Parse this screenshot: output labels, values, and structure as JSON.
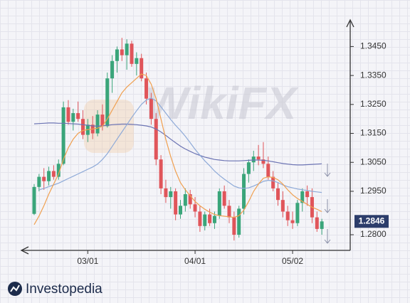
{
  "chart_data": {
    "type": "candlestick",
    "watermark": "WikiFX",
    "categories": [
      null,
      null,
      null,
      null,
      null,
      null,
      null,
      null,
      null,
      null,
      null,
      "03/01",
      null,
      null,
      null,
      null,
      null,
      null,
      null,
      null,
      null,
      null,
      null,
      null,
      null,
      null,
      null,
      null,
      null,
      null,
      null,
      null,
      null,
      "04/01",
      null,
      null,
      null,
      null,
      null,
      null,
      null,
      null,
      null,
      null,
      null,
      null,
      null,
      null,
      null,
      null,
      null,
      null,
      null,
      "05/02",
      null,
      null,
      null,
      null,
      null,
      null
    ],
    "open": [
      1.2872,
      1.2965,
      1.3,
      1.2985,
      1.302,
      1.3,
      1.3045,
      1.324,
      1.319,
      1.322,
      1.32,
      1.3145,
      1.318,
      1.315,
      1.3215,
      1.3175,
      1.334,
      1.34,
      1.344,
      1.342,
      1.346,
      1.339,
      1.341,
      1.334,
      1.327,
      1.32,
      1.306,
      1.296,
      1.293,
      1.295,
      1.287,
      1.29,
      1.294,
      1.2905,
      1.288,
      1.283,
      1.287,
      1.284,
      1.2865,
      1.295,
      1.29,
      1.286,
      1.28,
      1.289,
      1.301,
      1.305,
      1.307,
      1.306,
      1.3045,
      1.3,
      1.296,
      1.292,
      1.288,
      1.285,
      1.284,
      1.291,
      1.295,
      1.293,
      1.286,
      1.282
    ],
    "high": [
      1.2975,
      1.301,
      1.303,
      1.3035,
      1.304,
      1.306,
      1.326,
      1.3265,
      1.3235,
      1.326,
      1.323,
      1.32,
      1.321,
      1.323,
      1.325,
      1.336,
      1.342,
      1.345,
      1.348,
      1.3475,
      1.347,
      1.343,
      1.3425,
      1.336,
      1.329,
      1.322,
      1.3075,
      1.299,
      1.2965,
      1.296,
      1.292,
      1.296,
      1.2955,
      1.293,
      1.29,
      1.288,
      1.289,
      1.288,
      1.296,
      1.297,
      1.292,
      1.288,
      1.29,
      1.303,
      1.306,
      1.309,
      1.311,
      1.312,
      1.307,
      1.302,
      1.298,
      1.295,
      1.29,
      1.288,
      1.292,
      1.296,
      1.297,
      1.296,
      1.288,
      1.2855
    ],
    "low": [
      1.2868,
      1.295,
      1.2955,
      1.297,
      1.299,
      1.299,
      1.304,
      1.318,
      1.316,
      1.319,
      1.313,
      1.312,
      1.313,
      1.314,
      1.316,
      1.317,
      1.329,
      1.336,
      1.34,
      1.337,
      1.338,
      1.335,
      1.333,
      1.325,
      1.318,
      1.304,
      1.294,
      1.291,
      1.289,
      1.285,
      1.2855,
      1.288,
      1.289,
      1.286,
      1.281,
      1.2815,
      1.283,
      1.282,
      1.2855,
      1.289,
      1.284,
      1.278,
      1.279,
      1.287,
      1.298,
      1.302,
      1.304,
      1.303,
      1.299,
      1.295,
      1.29,
      1.286,
      1.283,
      1.282,
      1.283,
      1.288,
      1.29,
      1.284,
      1.281,
      1.28
    ],
    "close": [
      1.2965,
      1.3,
      1.2985,
      1.302,
      1.3,
      1.3045,
      1.324,
      1.319,
      1.322,
      1.32,
      1.3145,
      1.318,
      1.315,
      1.3215,
      1.3175,
      1.334,
      1.34,
      1.344,
      1.342,
      1.346,
      1.339,
      1.341,
      1.334,
      1.327,
      1.32,
      1.306,
      1.296,
      1.293,
      1.295,
      1.287,
      1.29,
      1.294,
      1.2905,
      1.288,
      1.283,
      1.287,
      1.284,
      1.2865,
      1.295,
      1.29,
      1.286,
      1.28,
      1.289,
      1.301,
      1.305,
      1.307,
      1.306,
      1.3045,
      1.3,
      1.296,
      1.292,
      1.288,
      1.285,
      1.284,
      1.291,
      1.295,
      1.293,
      1.286,
      1.282,
      1.2846
    ],
    "up_color": "#3aa57a",
    "down_color": "#e0555a",
    "lines": [
      {
        "color": "#6b73b3",
        "values": [
          1.3183,
          1.3184,
          1.3185,
          1.3186,
          1.3186,
          1.3185,
          1.3185,
          1.3184,
          1.3183,
          1.3182,
          1.318,
          1.3178,
          1.3176,
          1.3175,
          1.3176,
          1.3178,
          1.318,
          1.3181,
          1.3182,
          1.3182,
          1.3181,
          1.318,
          1.3178,
          1.3176,
          1.3172,
          1.3165,
          1.3155,
          1.3143,
          1.313,
          1.3118,
          1.3106,
          1.3096,
          1.3088,
          1.308,
          1.3074,
          1.3068,
          1.3064,
          1.306,
          1.3058,
          1.3056,
          1.3055,
          1.3055,
          1.3055,
          1.3056,
          1.3057,
          1.3058,
          1.3058,
          1.3057,
          1.3055,
          1.3052,
          1.3049,
          1.3046,
          1.3044,
          1.3042,
          1.3041,
          1.3041,
          1.3042,
          1.3043,
          1.3044,
          1.3045
        ]
      },
      {
        "color": "#8eaad8",
        "values": [
          null,
          1.2955,
          1.296,
          1.2966,
          1.2972,
          1.2978,
          1.2986,
          1.2994,
          1.3002,
          1.301,
          1.3018,
          1.3026,
          1.3034,
          1.3044,
          1.306,
          1.308,
          1.3105,
          1.313,
          1.3155,
          1.318,
          1.3205,
          1.3228,
          1.325,
          1.3265,
          1.3272,
          1.3262,
          1.3242,
          1.322,
          1.3198,
          1.3178,
          1.316,
          1.314,
          1.3118,
          1.3095,
          1.3075,
          1.3055,
          1.3038,
          1.302,
          1.3005,
          1.2992,
          1.298,
          1.2968,
          1.2962,
          1.296,
          1.2962,
          1.2968,
          1.2976,
          1.2984,
          1.2988,
          1.2986,
          1.298,
          1.2972,
          1.2966,
          1.2962,
          1.2958,
          1.2955,
          1.2953,
          1.295,
          1.2948,
          1.2946
        ]
      },
      {
        "color": "#f0a050",
        "values": [
          1.2835,
          1.2865,
          1.29,
          1.294,
          1.2975,
          1.301,
          1.306,
          1.31,
          1.313,
          1.315,
          1.316,
          1.3163,
          1.3165,
          1.3168,
          1.3175,
          1.32,
          1.323,
          1.326,
          1.329,
          1.331,
          1.3325,
          1.334,
          1.3355,
          1.335,
          1.332,
          1.327,
          1.32,
          1.313,
          1.307,
          1.302,
          1.298,
          1.2955,
          1.2935,
          1.2915,
          1.29,
          1.2888,
          1.2878,
          1.287,
          1.2866,
          1.2864,
          1.2862,
          1.286,
          1.2866,
          1.2885,
          1.2915,
          1.295,
          1.2975,
          1.2995,
          1.3,
          1.2998,
          1.299,
          1.2975,
          1.2955,
          1.2938,
          1.2925,
          1.2915,
          1.2905,
          1.2895,
          1.2888,
          1.288
        ]
      }
    ],
    "ylim": [
      1.2746,
      1.3537
    ],
    "yticks": [
      {
        "value": 1.28,
        "label": "1.2800"
      },
      {
        "value": 1.295,
        "label": "1.2950"
      },
      {
        "value": 1.305,
        "label": "1.3050"
      },
      {
        "value": 1.315,
        "label": "1.3150"
      },
      {
        "value": 1.325,
        "label": "1.3250"
      },
      {
        "value": 1.335,
        "label": "1.3350"
      },
      {
        "value": 1.345,
        "label": "1.3450"
      }
    ],
    "last_price": {
      "value": 1.2846,
      "label": "1.2846"
    }
  },
  "brand": "Investopedia"
}
